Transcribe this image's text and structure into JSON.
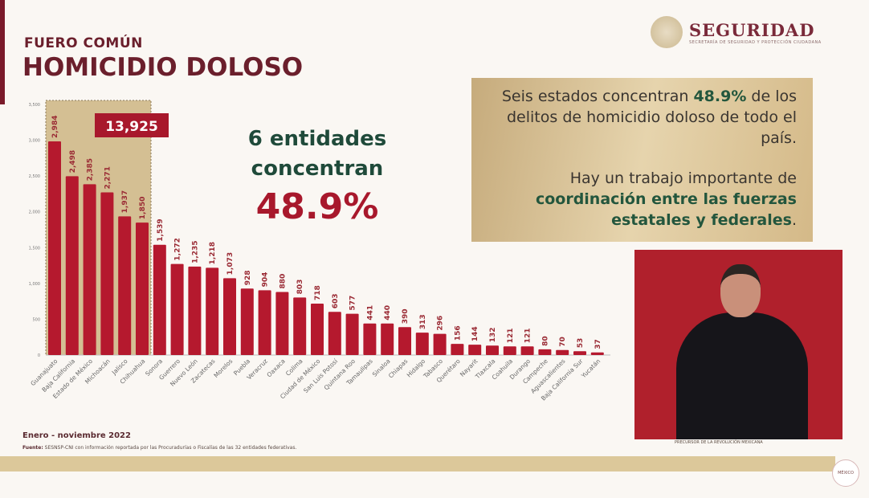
{
  "header": {
    "kicker": "FUERO COMÚN",
    "title": "HOMICIDIO DOLOSO"
  },
  "logo": {
    "name": "SEGURIDAD",
    "sub": "SECRETARÍA DE SEGURIDAD Y PROTECCIÓN CIUDADANA"
  },
  "callout": {
    "line1": "6 entidades",
    "line2": "concentran",
    "pct": "48.9%"
  },
  "panel": {
    "p1_a": "Seis estados concentran ",
    "p1_b": "48.9%",
    "p1_c": " de los delitos de homicidio doloso de todo el país.",
    "p2_a": "Hay un trabajo importante de ",
    "p2_b": "coordinación entre las fuerzas estatales y federales",
    "p2_c": "."
  },
  "footer": {
    "date": "Enero - noviembre 2022",
    "source_label": "Fuente:",
    "source": " SESNSP-CNI con información reportada por las Procuradurías o Fiscalías de las 32 entidades federativas.",
    "interpreter_caption": "PRECURSOR DE LA REVOLUCIÓN MEXICANA",
    "badge": "MÉXICO"
  },
  "colors": {
    "bar": "#b5192e",
    "highlight": "#d4bf93",
    "accent_green": "#1f4a3a",
    "accent_red": "#a8182c"
  },
  "chart_data": {
    "type": "bar",
    "ylim": [
      0,
      3500
    ],
    "yticks": [
      0,
      500,
      1000,
      1500,
      2000,
      2500,
      3000,
      3500
    ],
    "ytick_labels": [
      "0",
      "500",
      "1,000",
      "1,500",
      "2,000",
      "2,500",
      "3,000",
      "3,500"
    ],
    "highlight": {
      "count": 6,
      "total_label": "13,925"
    },
    "categories": [
      "Guanajuato",
      "Baja California",
      "Estado de México",
      "Michoacán",
      "Jalisco",
      "Chihuahua",
      "Sonora",
      "Guerrero",
      "Nuevo León",
      "Zacatecas",
      "Morelos",
      "Puebla",
      "Veracruz",
      "Oaxaca",
      "Colima",
      "Ciudad de México",
      "San Luis Potosí",
      "Quintana Roo",
      "Tamaulipas",
      "Sinaloa",
      "Chiapas",
      "Hidalgo",
      "Tabasco",
      "Querétaro",
      "Nayarit",
      "Tlaxcala",
      "Coahuila",
      "Durango",
      "Campeche",
      "Aguascalientes",
      "Baja California Sur",
      "Yucatán"
    ],
    "values": [
      2984,
      2498,
      2385,
      2271,
      1937,
      1850,
      1539,
      1272,
      1235,
      1218,
      1073,
      928,
      904,
      880,
      803,
      718,
      603,
      577,
      441,
      440,
      390,
      313,
      296,
      156,
      144,
      132,
      121,
      121,
      80,
      70,
      53,
      37
    ],
    "value_labels": [
      "2,984",
      "2,498",
      "2,385",
      "2,271",
      "1,937",
      "1,850",
      "1,539",
      "1,272",
      "1,235",
      "1,218",
      "1,073",
      "928",
      "904",
      "880",
      "803",
      "718",
      "603",
      "577",
      "441",
      "440",
      "390",
      "313",
      "296",
      "156",
      "144",
      "132",
      "121",
      "121",
      "80",
      "70",
      "53",
      "37"
    ]
  }
}
